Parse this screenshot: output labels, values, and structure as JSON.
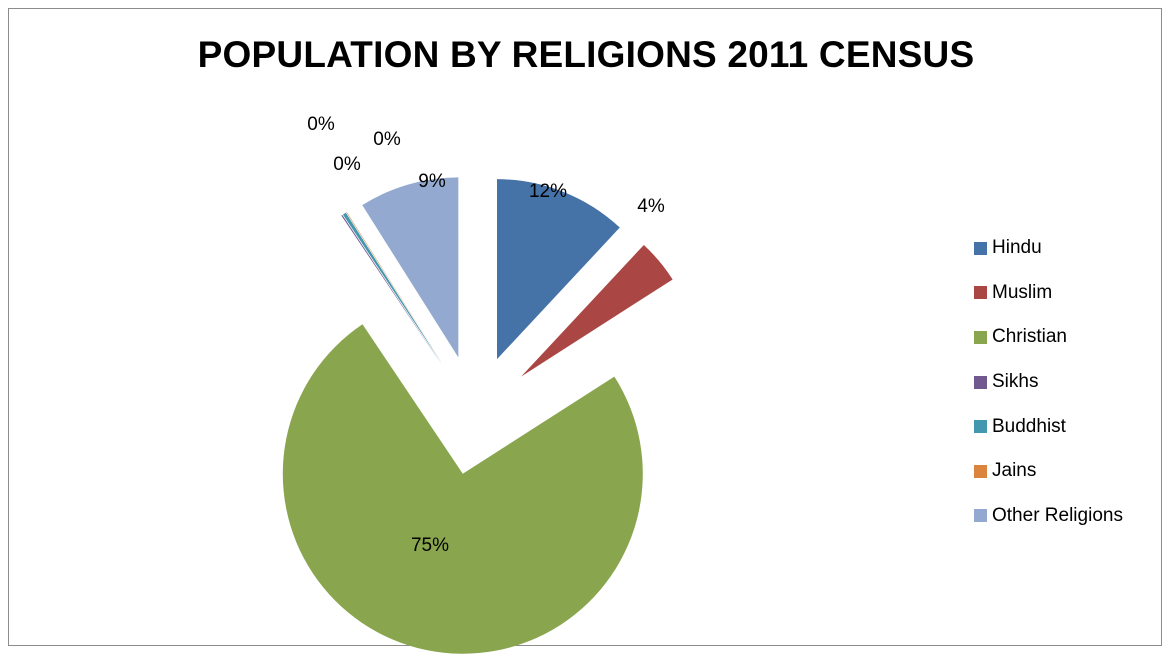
{
  "chart_data": {
    "type": "pie",
    "title": "POPULATION BY RELIGIONS 2011 CENSUS",
    "categories": [
      "Hindu",
      "Muslim",
      "Christian",
      "Sikhs",
      "Buddhist",
      "Jains",
      "Other Religions"
    ],
    "values": [
      12,
      4,
      75,
      0.1,
      0.3,
      0.05,
      9
    ],
    "data_labels": [
      "12%",
      "4%",
      "75%",
      "0%",
      "0%",
      "0%",
      "9%"
    ],
    "colors": [
      "#4572A7",
      "#AA4643",
      "#89A54E",
      "#71588F",
      "#4198AF",
      "#DB843D",
      "#93A9CF"
    ],
    "exploded": true,
    "legend": "right"
  }
}
